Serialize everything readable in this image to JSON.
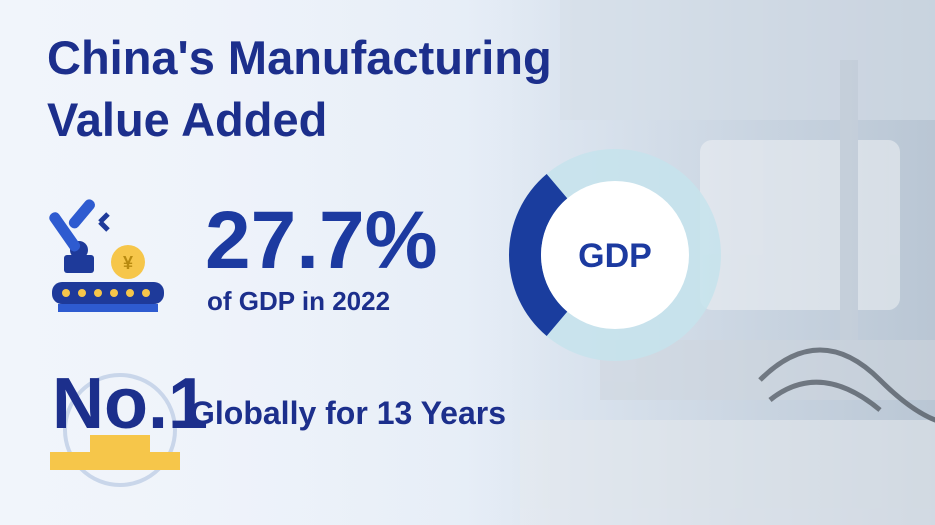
{
  "title": [
    "China's Manufacturing",
    "Value Added"
  ],
  "share": {
    "value": 27.7,
    "label": "27.7%",
    "caption": "of GDP in 2022"
  },
  "rank": {
    "label": "No.1",
    "caption": "Globally for 13 Years"
  },
  "donut": {
    "label": "GDP"
  }
}
